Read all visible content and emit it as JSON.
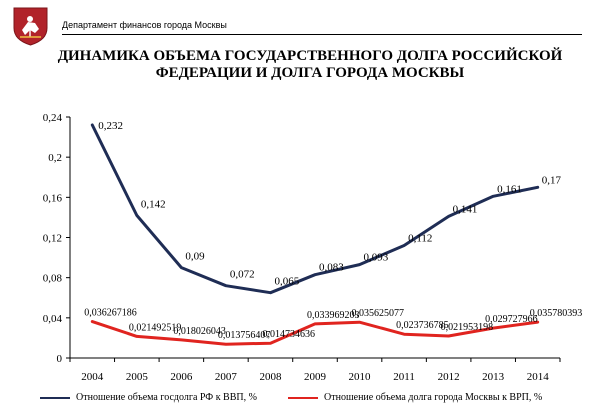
{
  "header": {
    "department": "Департамент финансов города Москвы",
    "title": "ДИНАМИКА ОБЪЕМА ГОСУДАРСТВЕННОГО ДОЛГА РОССИЙСКОЙ ФЕДЕРАЦИИ И ДОЛГА ГОРОДА МОСКВЫ",
    "emblem_icon": "moscow-coat-of-arms-icon"
  },
  "chart_data": {
    "type": "line",
    "categories": [
      "2004",
      "2005",
      "2006",
      "2007",
      "2008",
      "2009",
      "2010",
      "2011",
      "2012",
      "2013",
      "2014"
    ],
    "ylim": [
      0,
      0.24
    ],
    "yticks": [
      "0",
      "0,04",
      "0,08",
      "0,12",
      "0,16",
      "0,2",
      "0,24"
    ],
    "grid": false,
    "legend_position": "bottom",
    "series": [
      {
        "name": "Отношение объема госдолга РФ к ВВП, %",
        "color": "#1f2d55",
        "values": [
          0.232,
          0.142,
          0.09,
          0.072,
          0.065,
          0.083,
          0.093,
          0.112,
          0.141,
          0.161,
          0.17
        ],
        "labels": [
          "0,232",
          "0,142",
          "0,09",
          "0,072",
          "0,065",
          "0,083",
          "0,093",
          "0,112",
          "0,141",
          "0,161",
          "0,17"
        ]
      },
      {
        "name": "Отношение объема долга города Москвы к ВРП, %",
        "color": "#e0241f",
        "values": [
          0.036267186,
          0.021492519,
          0.018026043,
          0.013756407,
          0.014734636,
          0.033969203,
          0.035625077,
          0.023736785,
          0.021953198,
          0.029727966,
          0.035780393
        ],
        "labels": [
          "0,036267186",
          "0,021492519",
          "0,018026043",
          "0,013756407",
          "0,014734636",
          "0,033969203",
          "0,035625077",
          "0,023736785",
          "0,021953198",
          "0,029727966",
          "0,035780393"
        ]
      }
    ]
  }
}
